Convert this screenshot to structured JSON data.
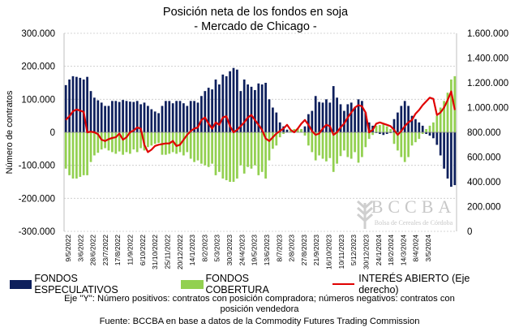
{
  "chart_data": {
    "type": "bar",
    "title": "Posición neta de los fondos en soja",
    "subtitle": "- Mercado de Chicago -",
    "ylabel": "Número de contratos",
    "ylim": [
      -300000,
      300000
    ],
    "y_ticks": [
      "300.000",
      "200.000",
      "100.000",
      "0",
      "-100.000",
      "-200.000",
      "-300.000"
    ],
    "y2lim": [
      0,
      1600000
    ],
    "y2_ticks": [
      "1.600.000",
      "1.400.000",
      "1.200.000",
      "1.000.000",
      "800.000",
      "600.000",
      "400.000",
      "200.000",
      "0"
    ],
    "grid": true,
    "x_tick_labels": [
      "9/5/2022",
      "3/6/2022",
      "28/6/2022",
      "23/7/2022",
      "17/8/2022",
      "11/9/2022",
      "6/10/2022",
      "31/10/2022",
      "25/11/2022",
      "20/12/2022",
      "14/1/2023",
      "8/2/2023",
      "5/3/2023",
      "30/3/2023",
      "24/4/2023",
      "19/5/2023",
      "13/6/2023",
      "8/7/2023",
      "2/8/2023",
      "27/8/2023",
      "21/9/2023",
      "16/10/2023",
      "10/11/2023",
      "5/12/2023",
      "30/12/2023",
      "24/1/2024",
      "18/2/2024",
      "14/3/2024",
      "8/4/2024",
      "3/5/2024"
    ],
    "weeks": 110,
    "series": [
      {
        "name": "FONDOS ESPECULATIVOS",
        "type": "bar",
        "axis": "left",
        "color": "#0d1f5c",
        "values": [
          143000,
          160000,
          170000,
          168000,
          165000,
          160000,
          168000,
          125000,
          105000,
          97000,
          90000,
          80000,
          80000,
          95000,
          95000,
          92000,
          98000,
          95000,
          93000,
          92000,
          95000,
          85000,
          90000,
          80000,
          70000,
          63000,
          58000,
          80000,
          95000,
          95000,
          88000,
          95000,
          95000,
          88000,
          80000,
          95000,
          95000,
          90000,
          110000,
          125000,
          135000,
          130000,
          160000,
          145000,
          175000,
          170000,
          185000,
          195000,
          190000,
          125000,
          160000,
          145000,
          138000,
          128000,
          148000,
          145000,
          150000,
          100000,
          75000,
          60000,
          30000,
          18000,
          8000,
          3000,
          3000,
          5000,
          8000,
          18000,
          55000,
          65000,
          110000,
          92000,
          90000,
          100000,
          90000,
          140000,
          105000,
          85000,
          65000,
          85000,
          90000,
          75000,
          100000,
          95000,
          60000,
          30000,
          20000,
          -2000,
          -5000,
          -8000,
          -5000,
          -2000,
          40000,
          60000,
          80000,
          95000,
          80000,
          50000,
          40000,
          30000,
          20000,
          -5000,
          -10000,
          -18000,
          -38000,
          -70000,
          -110000,
          -140000,
          -165000,
          -160000
        ],
        "values_note": "estimated from gridlines"
      },
      {
        "name": "FONDOS COBERTURA",
        "type": "bar",
        "axis": "left",
        "color": "#92d050",
        "values": [
          -110000,
          -130000,
          -140000,
          -140000,
          -135000,
          -130000,
          -130000,
          -90000,
          -70000,
          -62000,
          -52000,
          -48000,
          -55000,
          -60000,
          -65000,
          -58000,
          -68000,
          -60000,
          -65000,
          -52000,
          -60000,
          -48000,
          -55000,
          -45000,
          -40000,
          -35000,
          -32000,
          -68000,
          -68000,
          -65000,
          -60000,
          -65000,
          -60000,
          -70000,
          -60000,
          -80000,
          -90000,
          -85000,
          -95000,
          -100000,
          -105000,
          -95000,
          -130000,
          -120000,
          -140000,
          -145000,
          -150000,
          -150000,
          -140000,
          -100000,
          -125000,
          -105000,
          -110000,
          -100000,
          -130000,
          -120000,
          -140000,
          -85000,
          -50000,
          -40000,
          -15000,
          -5000,
          0,
          5000,
          10000,
          12000,
          10000,
          -10000,
          -40000,
          -60000,
          -85000,
          -70000,
          -80000,
          -88000,
          -78000,
          -120000,
          -95000,
          -72000,
          -55000,
          -75000,
          -80000,
          -60000,
          -92000,
          -75000,
          -45000,
          -20000,
          -8000,
          20000,
          22000,
          25000,
          18000,
          10000,
          -35000,
          -55000,
          -75000,
          -90000,
          -75000,
          -40000,
          -30000,
          -20000,
          -5000,
          10000,
          20000,
          30000,
          50000,
          75000,
          95000,
          120000,
          160000,
          170000
        ],
        "values_note": "estimated from gridlines"
      },
      {
        "name": "INTERÉS ABIERTO (Eje derecho)",
        "type": "line",
        "axis": "right",
        "color": "#e00000",
        "values": [
          900000,
          930000,
          970000,
          985000,
          975000,
          965000,
          800000,
          805000,
          800000,
          785000,
          740000,
          730000,
          745000,
          755000,
          760000,
          790000,
          740000,
          760000,
          800000,
          815000,
          840000,
          830000,
          700000,
          640000,
          660000,
          690000,
          700000,
          705000,
          710000,
          710000,
          730000,
          690000,
          700000,
          740000,
          780000,
          810000,
          830000,
          840000,
          900000,
          920000,
          870000,
          830000,
          880000,
          860000,
          920000,
          930000,
          850000,
          800000,
          820000,
          850000,
          880000,
          920000,
          940000,
          900000,
          860000,
          820000,
          750000,
          730000,
          760000,
          790000,
          810000,
          830000,
          860000,
          820000,
          800000,
          830000,
          870000,
          900000,
          860000,
          810000,
          780000,
          790000,
          830000,
          860000,
          850000,
          780000,
          800000,
          840000,
          870000,
          920000,
          960000,
          1000000,
          1020000,
          1010000,
          960000,
          800000,
          820000,
          870000,
          880000,
          870000,
          860000,
          850000,
          820000,
          780000,
          810000,
          850000,
          880000,
          900000,
          950000,
          980000,
          1020000,
          1050000,
          1080000,
          1070000,
          940000,
          960000,
          1000000,
          1060000,
          1130000,
          980000
        ]
      }
    ],
    "legend": [
      "FONDOS ESPECULATIVOS",
      "FONDOS COBERTURA",
      "INTERÉS ABIERTO (Eje derecho)"
    ],
    "legend_position": "bottom"
  },
  "notes": {
    "line1": "Eje \"Y\": Número positivos: contratos con posición compradora; números negativos: contratos con",
    "line2": "posición vendedora",
    "source": "Fuente: BCCBA en base a datos de la Commodity Futures Trading Commission"
  },
  "watermark": {
    "name": "BCCBA",
    "tagline": "Bolsa de Cereales de Córdoba"
  }
}
